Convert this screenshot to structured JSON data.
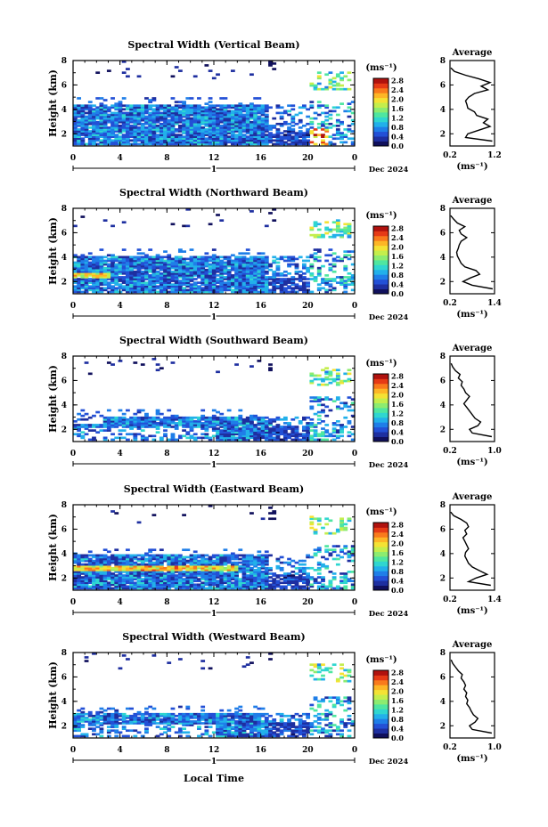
{
  "figure": {
    "x_axis_label": "Local Time",
    "date_label": "Dec 2024",
    "day_marker": "1",
    "profile_title": "Average",
    "profile_unit": "(ms⁻¹)",
    "colorbar_unit": "(ms⁻¹)",
    "y_axis_label": "Height (km)",
    "colormap": [
      "#10105c",
      "#1e2fa0",
      "#2350d6",
      "#1f7ee8",
      "#22b0ea",
      "#2fd6d0",
      "#4fe6a0",
      "#8cec70",
      "#c4ee4c",
      "#f4e234",
      "#fdb626",
      "#f97a1c",
      "#e63a16",
      "#b0120e"
    ],
    "colorbar_ticks": [
      "0.0",
      "0.4",
      "0.8",
      "1.2",
      "1.6",
      "2.0",
      "2.4",
      "2.8"
    ]
  },
  "chart_data": [
    {
      "type": "heatmap",
      "title": "Spectral Width (Vertical Beam)",
      "xlabel": "",
      "ylabel": "Height (km)",
      "xlim": [
        0,
        24
      ],
      "ylim": [
        1,
        8
      ],
      "x_ticks": [
        "0",
        "4",
        "8",
        "12",
        "16",
        "20",
        "0"
      ],
      "y_ticks": [
        "2",
        "4",
        "6",
        "8"
      ],
      "colorbar_range": [
        0,
        3
      ],
      "profile": {
        "xlim": [
          0.2,
          1.2
        ],
        "x_ticks": [
          "0.2",
          "1.2"
        ],
        "y_ticks": [
          "2",
          "4",
          "6",
          "8"
        ],
        "heights": [
          1.4,
          1.7,
          2.0,
          2.3,
          2.6,
          2.9,
          3.2,
          3.5,
          3.8,
          4.1,
          4.4,
          4.7,
          5.0,
          5.3,
          5.6,
          5.9,
          6.2,
          6.5,
          6.8,
          7.1,
          7.4
        ],
        "values": [
          1.15,
          0.55,
          0.6,
          0.85,
          1.1,
          0.95,
          1.05,
          0.8,
          0.75,
          0.6,
          0.58,
          0.55,
          0.62,
          0.75,
          1.05,
          0.9,
          1.1,
          0.85,
          0.55,
          0.3,
          0.22
        ]
      }
    },
    {
      "type": "heatmap",
      "title": "Spectral Width (Northward Beam)",
      "xlabel": "",
      "ylabel": "Height (km)",
      "xlim": [
        0,
        24
      ],
      "ylim": [
        1,
        8
      ],
      "x_ticks": [
        "0",
        "4",
        "8",
        "12",
        "16",
        "20",
        "0"
      ],
      "y_ticks": [
        "2",
        "4",
        "6",
        "8"
      ],
      "colorbar_range": [
        0,
        3
      ],
      "profile": {
        "xlim": [
          0.2,
          1.4
        ],
        "x_ticks": [
          "0.2",
          "1.4"
        ],
        "y_ticks": [
          "2",
          "4",
          "6",
          "8"
        ],
        "heights": [
          1.4,
          1.7,
          2.0,
          2.3,
          2.6,
          2.9,
          3.2,
          3.5,
          3.8,
          4.1,
          4.4,
          4.7,
          5.0,
          5.3,
          5.6,
          5.9,
          6.2,
          6.5,
          6.8,
          7.1,
          7.4
        ],
        "values": [
          1.35,
          0.8,
          0.55,
          0.75,
          1.0,
          0.9,
          0.6,
          0.5,
          0.45,
          0.4,
          0.38,
          0.42,
          0.45,
          0.5,
          0.65,
          0.5,
          0.45,
          0.6,
          0.4,
          0.3,
          0.22
        ]
      }
    },
    {
      "type": "heatmap",
      "title": "Spectral Width (Southward Beam)",
      "xlabel": "",
      "ylabel": "Height (km)",
      "xlim": [
        0,
        24
      ],
      "ylim": [
        1,
        8
      ],
      "x_ticks": [
        "0",
        "4",
        "8",
        "12",
        "16",
        "20",
        "0"
      ],
      "y_ticks": [
        "2",
        "4",
        "6",
        "8"
      ],
      "colorbar_range": [
        0,
        3
      ],
      "profile": {
        "xlim": [
          0.2,
          1.0
        ],
        "x_ticks": [
          "0.2",
          "1.0"
        ],
        "y_ticks": [
          "2",
          "4",
          "6",
          "8"
        ],
        "heights": [
          1.4,
          1.7,
          2.0,
          2.3,
          2.6,
          2.9,
          3.2,
          3.5,
          3.8,
          4.1,
          4.4,
          4.7,
          5.0,
          5.3,
          5.6,
          5.9,
          6.2,
          6.5,
          6.8,
          7.1,
          7.4
        ],
        "values": [
          0.95,
          0.6,
          0.55,
          0.7,
          0.75,
          0.65,
          0.6,
          0.55,
          0.5,
          0.45,
          0.5,
          0.55,
          0.48,
          0.45,
          0.4,
          0.42,
          0.35,
          0.38,
          0.3,
          0.25,
          0.22
        ]
      }
    },
    {
      "type": "heatmap",
      "title": "Spectral Width (Eastward Beam)",
      "xlabel": "",
      "ylabel": "Height (km)",
      "xlim": [
        0,
        24
      ],
      "ylim": [
        1,
        8
      ],
      "x_ticks": [
        "0",
        "4",
        "8",
        "12",
        "16",
        "20",
        "0"
      ],
      "y_ticks": [
        "2",
        "4",
        "6",
        "8"
      ],
      "colorbar_range": [
        0,
        3
      ],
      "profile": {
        "xlim": [
          0.2,
          1.4
        ],
        "x_ticks": [
          "0.2",
          "1.4"
        ],
        "y_ticks": [
          "2",
          "4",
          "6",
          "8"
        ],
        "heights": [
          1.4,
          1.7,
          2.0,
          2.3,
          2.6,
          2.9,
          3.2,
          3.5,
          3.8,
          4.1,
          4.4,
          4.7,
          5.0,
          5.3,
          5.6,
          5.9,
          6.2,
          6.5,
          6.8,
          7.1,
          7.4
        ],
        "values": [
          1.3,
          0.7,
          0.9,
          1.2,
          1.0,
          0.8,
          0.7,
          0.65,
          0.6,
          0.62,
          0.7,
          0.65,
          0.6,
          0.55,
          0.65,
          0.6,
          0.7,
          0.65,
          0.5,
          0.3,
          0.22
        ]
      }
    },
    {
      "type": "heatmap",
      "title": "Spectral Width (Westward Beam)",
      "xlabel": "Local Time",
      "ylabel": "Height (km)",
      "xlim": [
        0,
        24
      ],
      "ylim": [
        1,
        8
      ],
      "x_ticks": [
        "0",
        "4",
        "8",
        "12",
        "16",
        "20",
        "0"
      ],
      "y_ticks": [
        "2",
        "4",
        "6",
        "8"
      ],
      "colorbar_range": [
        0,
        3
      ],
      "profile": {
        "xlim": [
          0.2,
          1.0
        ],
        "x_ticks": [
          "0.2",
          "1.0"
        ],
        "y_ticks": [
          "2",
          "4",
          "6",
          "8"
        ],
        "heights": [
          1.4,
          1.7,
          2.0,
          2.3,
          2.6,
          2.9,
          3.2,
          3.5,
          3.8,
          4.1,
          4.4,
          4.7,
          5.0,
          5.3,
          5.6,
          5.9,
          6.2,
          6.5,
          6.8,
          7.1,
          7.4
        ],
        "values": [
          0.95,
          0.6,
          0.55,
          0.65,
          0.7,
          0.62,
          0.58,
          0.55,
          0.5,
          0.52,
          0.48,
          0.5,
          0.45,
          0.48,
          0.45,
          0.4,
          0.42,
          0.35,
          0.3,
          0.25,
          0.22
        ]
      }
    }
  ]
}
